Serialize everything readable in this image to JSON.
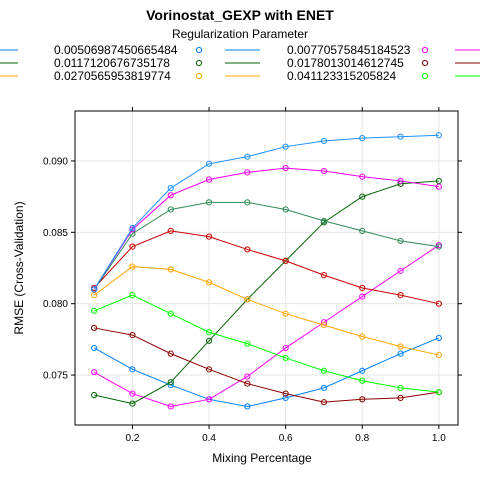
{
  "chart_data": {
    "type": "line",
    "title": "Vorinostat_GEXP with ENET",
    "legend_title": "Regularization Parameter",
    "xlabel": "Mixing Percentage",
    "ylabel": "RMSE (Cross-Validation)",
    "xlim": [
      0.05,
      1.05
    ],
    "ylim": [
      0.0715,
      0.0935
    ],
    "x_ticks": [
      "0.2",
      "0.4",
      "0.6",
      "0.8",
      "1.0"
    ],
    "y_ticks": [
      "0.075",
      "0.080",
      "0.085",
      "0.090"
    ],
    "grid": true,
    "legend_position": "top",
    "x": [
      0.1,
      0.2,
      0.3,
      0.4,
      0.5,
      0.6,
      0.7,
      0.8,
      0.9,
      1.0
    ],
    "series": [
      {
        "name": "0.00506987450665484",
        "color": "#0080ff",
        "values": [
          0.0769,
          0.0754,
          0.0743,
          0.0733,
          0.0728,
          0.0734,
          0.0741,
          0.0753,
          0.0765,
          0.0776
        ]
      },
      {
        "name": "0.00770575845184523",
        "color": "#ff00ff",
        "values": [
          0.0752,
          0.0737,
          0.0728,
          0.0733,
          0.0749,
          0.0769,
          0.0787,
          0.0805,
          0.0823,
          0.0841
        ]
      },
      {
        "name": "0.0117120676735178",
        "color": "#006400",
        "values": [
          0.0736,
          0.073,
          0.0745,
          0.0774,
          0.0803,
          0.083,
          0.0857,
          0.0875,
          0.0884,
          0.0886
        ]
      },
      {
        "name": "0.0178013014612745",
        "color": "#8b0000",
        "values": [
          0.0783,
          0.0778,
          0.0765,
          0.0754,
          0.0744,
          0.0737,
          0.0731,
          0.0733,
          0.0734,
          0.0738
        ]
      },
      {
        "name": "0.0270565953819774",
        "color": "#ffa500",
        "values": [
          0.0806,
          0.0826,
          0.0824,
          0.0815,
          0.0803,
          0.0793,
          0.0785,
          0.0777,
          0.077,
          0.0764
        ]
      },
      {
        "name": "0.041123315205824",
        "color": "#00ff00",
        "values": [
          0.0795,
          0.0806,
          0.0793,
          0.078,
          0.0772,
          0.0762,
          0.0753,
          0.0746,
          0.0741,
          0.0738
        ]
      },
      {
        "name": "",
        "color": "#cc0000",
        "values": [
          0.0811,
          0.084,
          0.0851,
          0.0847,
          0.0838,
          0.083,
          0.082,
          0.0811,
          0.0806,
          0.08
        ]
      },
      {
        "name": "",
        "color": "#2e8b57",
        "values": [
          0.081,
          0.0849,
          0.0866,
          0.0871,
          0.0871,
          0.0866,
          0.0858,
          0.0851,
          0.0844,
          0.084
        ]
      },
      {
        "name": "",
        "color": "#ee00ee",
        "values": [
          0.081,
          0.0852,
          0.0876,
          0.0887,
          0.0892,
          0.0895,
          0.0893,
          0.0889,
          0.0886,
          0.0882
        ]
      },
      {
        "name": "",
        "color": "#1e90ff",
        "values": [
          0.081,
          0.0853,
          0.0881,
          0.0898,
          0.0903,
          0.091,
          0.0914,
          0.0916,
          0.0917,
          0.0918
        ]
      }
    ]
  }
}
